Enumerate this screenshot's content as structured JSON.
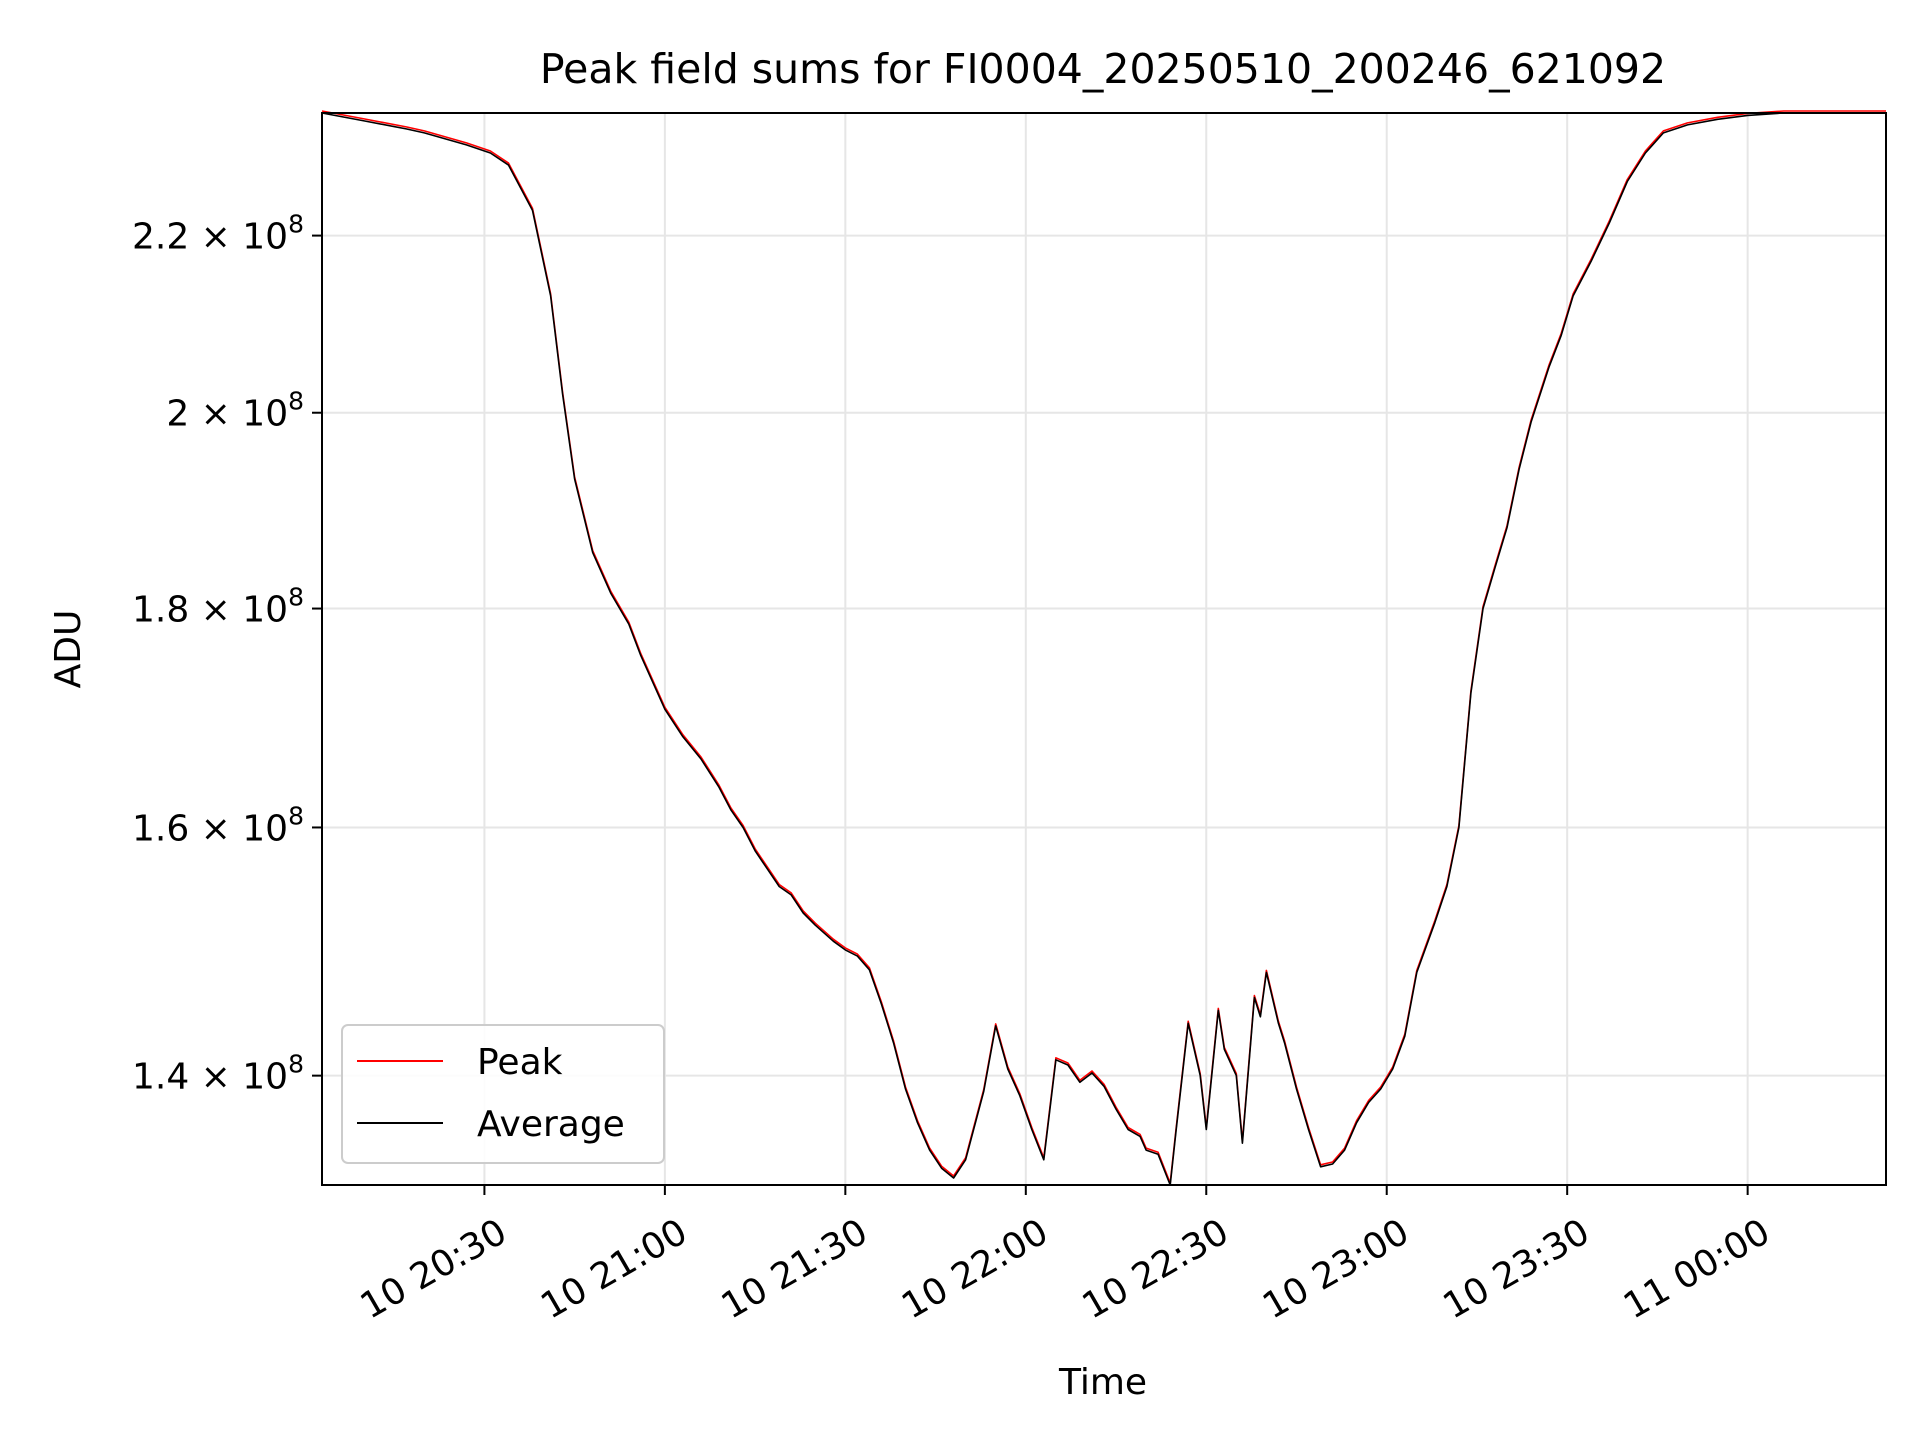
{
  "chart_data": {
    "type": "line",
    "title": "Peak field sums for FI0004_20250510_200246_621092",
    "xlabel": "Time",
    "ylabel": "ADU",
    "yscale": "log",
    "grid": true,
    "legend_placement": "lower-left",
    "xlim": [
      "2025-05-10 20:03",
      "2025-05-11 00:23"
    ],
    "ylim": [
      132000000,
      235000000
    ],
    "x_ticks": [
      "10 20:30",
      "10 21:00",
      "10 21:30",
      "10 22:00",
      "10 22:30",
      "10 23:00",
      "10 23:30",
      "11 00:00"
    ],
    "x_tick_times": [
      "2025-05-10 20:30",
      "2025-05-10 21:00",
      "2025-05-10 21:30",
      "2025-05-10 22:00",
      "2025-05-10 22:30",
      "2025-05-10 23:00",
      "2025-05-10 23:30",
      "2025-05-11 00:00"
    ],
    "y_ticks": [
      {
        "value": 140000000,
        "mantissa": "1.4",
        "exponent": "8"
      },
      {
        "value": 160000000,
        "mantissa": "1.6",
        "exponent": "8"
      },
      {
        "value": 180000000,
        "mantissa": "1.8",
        "exponent": "8"
      },
      {
        "value": 200000000,
        "mantissa": "2",
        "exponent": "8"
      },
      {
        "value": 220000000,
        "mantissa": "2.2",
        "exponent": "8"
      }
    ],
    "series": [
      {
        "name": "Peak",
        "color": "#ff0000"
      },
      {
        "name": "Average",
        "color": "#000000"
      }
    ],
    "x": [
      "2025-05-10 20:03",
      "2025-05-10 20:10",
      "2025-05-10 20:17",
      "2025-05-10 20:20",
      "2025-05-10 20:27",
      "2025-05-10 20:31",
      "2025-05-10 20:34",
      "2025-05-10 20:38",
      "2025-05-10 20:41",
      "2025-05-10 20:43",
      "2025-05-10 20:45",
      "2025-05-10 20:48",
      "2025-05-10 20:51",
      "2025-05-10 20:54",
      "2025-05-10 20:56",
      "2025-05-10 20:58",
      "2025-05-10 21:00",
      "2025-05-10 21:03",
      "2025-05-10 21:06",
      "2025-05-10 21:09",
      "2025-05-10 21:11",
      "2025-05-10 21:13",
      "2025-05-10 21:15",
      "2025-05-10 21:17",
      "2025-05-10 21:19",
      "2025-05-10 21:21",
      "2025-05-10 21:23",
      "2025-05-10 21:25",
      "2025-05-10 21:28",
      "2025-05-10 21:30",
      "2025-05-10 21:32",
      "2025-05-10 21:34",
      "2025-05-10 21:36",
      "2025-05-10 21:38",
      "2025-05-10 21:40",
      "2025-05-10 21:42",
      "2025-05-10 21:44",
      "2025-05-10 21:46",
      "2025-05-10 21:48",
      "2025-05-10 21:50",
      "2025-05-10 21:53",
      "2025-05-10 21:55",
      "2025-05-10 21:57",
      "2025-05-10 21:59",
      "2025-05-10 22:01",
      "2025-05-10 22:03",
      "2025-05-10 22:05",
      "2025-05-10 22:07",
      "2025-05-10 22:09",
      "2025-05-10 22:11",
      "2025-05-10 22:13",
      "2025-05-10 22:15",
      "2025-05-10 22:17",
      "2025-05-10 22:19",
      "2025-05-10 22:20",
      "2025-05-10 22:22",
      "2025-05-10 22:24",
      "2025-05-10 22:25",
      "2025-05-10 22:27",
      "2025-05-10 22:29",
      "2025-05-10 22:30",
      "2025-05-10 22:32",
      "2025-05-10 22:33",
      "2025-05-10 22:35",
      "2025-05-10 22:36",
      "2025-05-10 22:38",
      "2025-05-10 22:39",
      "2025-05-10 22:40",
      "2025-05-10 22:42",
      "2025-05-10 22:43",
      "2025-05-10 22:45",
      "2025-05-10 22:47",
      "2025-05-10 22:49",
      "2025-05-10 22:51",
      "2025-05-10 22:53",
      "2025-05-10 22:55",
      "2025-05-10 22:57",
      "2025-05-10 22:59",
      "2025-05-10 23:01",
      "2025-05-10 23:03",
      "2025-05-10 23:05",
      "2025-05-10 23:08",
      "2025-05-10 23:10",
      "2025-05-10 23:12",
      "2025-05-10 23:14",
      "2025-05-10 23:16",
      "2025-05-10 23:18",
      "2025-05-10 23:20",
      "2025-05-10 23:22",
      "2025-05-10 23:24",
      "2025-05-10 23:27",
      "2025-05-10 23:29",
      "2025-05-10 23:31",
      "2025-05-10 23:34",
      "2025-05-10 23:37",
      "2025-05-10 23:40",
      "2025-05-10 23:43",
      "2025-05-10 23:46",
      "2025-05-10 23:50",
      "2025-05-10 23:55",
      "2025-05-11 00:00",
      "2025-05-11 00:06",
      "2025-05-11 00:12",
      "2025-05-11 00:18",
      "2025-05-11 00:23"
    ],
    "values": [
      235000000,
      234000000,
      233000000,
      232500000,
      231000000,
      230000000,
      228500000,
      223000000,
      213000000,
      202000000,
      193000000,
      185500000,
      181500000,
      178500000,
      175500000,
      173000000,
      170500000,
      168000000,
      166000000,
      163500000,
      161500000,
      160000000,
      158000000,
      156500000,
      155000000,
      154300000,
      152800000,
      151800000,
      150500000,
      149800000,
      149300000,
      148200000,
      145500000,
      142500000,
      139000000,
      136500000,
      134500000,
      133200000,
      132500000,
      133800000,
      138800000,
      143800000,
      140500000,
      138500000,
      136000000,
      133800000,
      141200000,
      140800000,
      139500000,
      140200000,
      139200000,
      137500000,
      136000000,
      135500000,
      134500000,
      134200000,
      132000000,
      136000000,
      144000000,
      140000000,
      136000000,
      145000000,
      142000000,
      140000000,
      135000000,
      146000000,
      144500000,
      148000000,
      144000000,
      142500000,
      139000000,
      136000000,
      133300000,
      133500000,
      134500000,
      136500000,
      138000000,
      139000000,
      140500000,
      143000000,
      148000000,
      152000000,
      155000000,
      160000000,
      172000000,
      180000000,
      184000000,
      188000000,
      194000000,
      199000000,
      205000000,
      208500000,
      213000000,
      217000000,
      221500000,
      226500000,
      230000000,
      232500000,
      233500000,
      234200000,
      234700000,
      235000000,
      235000000,
      235000000,
      235000000
    ]
  }
}
